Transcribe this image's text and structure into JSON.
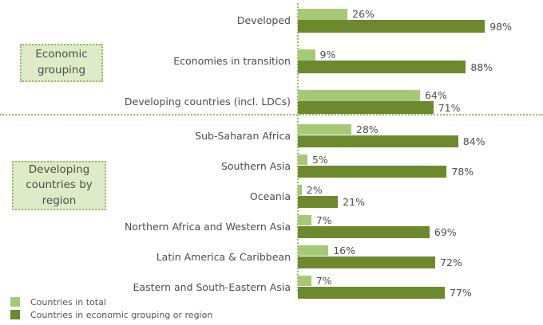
{
  "chart_data": {
    "type": "bar",
    "orientation": "horizontal",
    "unit": "%",
    "xlim": [
      0,
      100
    ],
    "grid": false,
    "legend_position": "bottom-left",
    "series_names": [
      "Countries in total",
      "Countries in economic grouping or region"
    ],
    "groups": [
      {
        "name": "Economic grouping",
        "rows": [
          {
            "label": "Developed",
            "total": 26,
            "group": 98
          },
          {
            "label": "Economies in transition",
            "total": 9,
            "group": 88
          },
          {
            "label": "Developing countries (incl. LDCs)",
            "total": 64,
            "group": 71
          }
        ]
      },
      {
        "name": "Developing countries by region",
        "rows": [
          {
            "label": "Sub-Saharan Africa",
            "total": 28,
            "group": 84
          },
          {
            "label": "Southern Asia",
            "total": 5,
            "group": 78
          },
          {
            "label": "Oceania",
            "total": 2,
            "group": 21
          },
          {
            "label": "Northern Africa and Western Asia",
            "total": 7,
            "group": 69
          },
          {
            "label": "Latin America & Caribbean",
            "total": 16,
            "group": 72
          },
          {
            "label": "Eastern and South-Eastern Asia",
            "total": 7,
            "group": 77
          }
        ]
      }
    ]
  },
  "legend": {
    "items": [
      {
        "label": "Countries in total",
        "series": "total"
      },
      {
        "label": "Countries in economic grouping or region",
        "series": "group"
      }
    ]
  },
  "colors": {
    "total": "#a5c977",
    "group": "#6c8a2d",
    "box_fill": "#ddebc6",
    "box_border": "#9cb964",
    "axis": "#9cbd60",
    "text": "#4d4d4d"
  }
}
